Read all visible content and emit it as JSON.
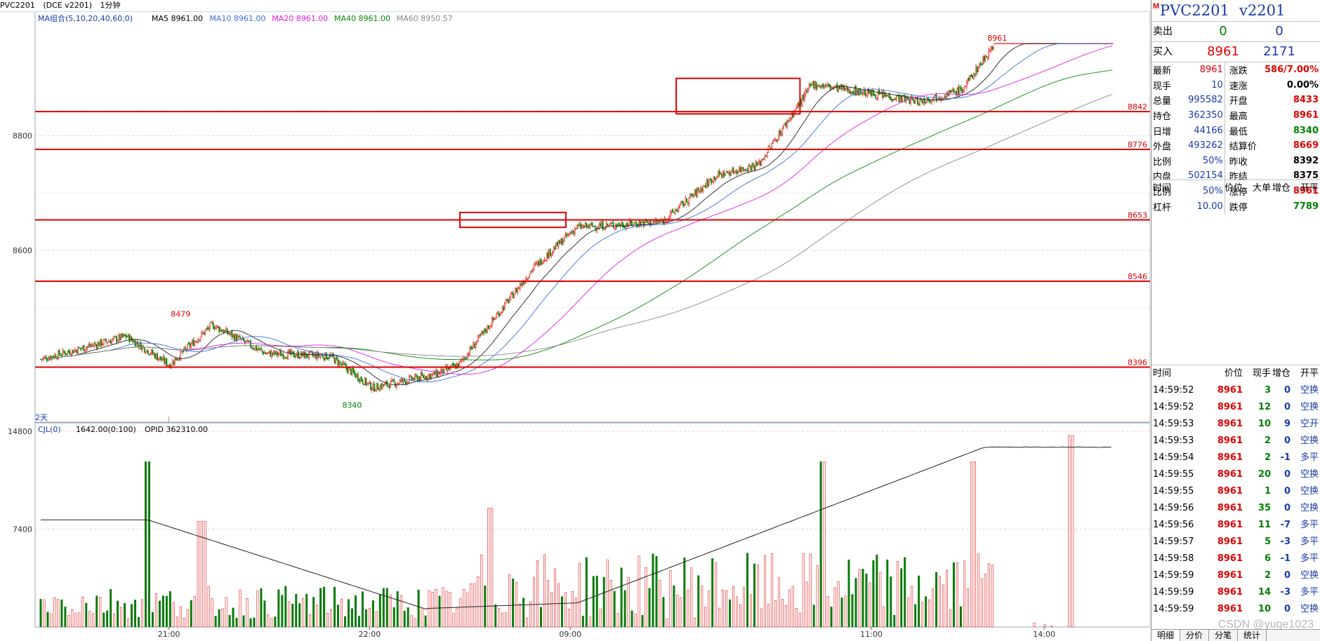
{
  "title": {
    "symbol": "PVC2201",
    "exchange": "(DCE v2201)",
    "period": "1分钟"
  },
  "ma_legend": {
    "group": "MA组合(5,10,20,40,60,0)",
    "ma5": "MA5 8961.00",
    "ma10": "MA10 8961.00",
    "ma20": "MA20 8961.00",
    "ma40": "MA40 8961.00",
    "ma60": "MA60 8950.57"
  },
  "vol_legend": {
    "name": "CJL(0)",
    "values": "1642.00(0:100)",
    "opid": "OPID 362310.00"
  },
  "price_axis": {
    "labels": [
      "8800",
      "8600"
    ]
  },
  "vol_axis": {
    "labels": [
      "14800",
      "7400"
    ]
  },
  "time_axis": {
    "labels": [
      "21:00",
      "22:00",
      "09:00",
      "11:00",
      "14:00"
    ]
  },
  "day_marker": "2天",
  "chart_annotations": {
    "high_label": "8961",
    "low_label": "8340",
    "local_high_label": "8479"
  },
  "hlines": [
    {
      "label": "8842"
    },
    {
      "label": "8776"
    },
    {
      "label": "8653"
    },
    {
      "label": "8546"
    },
    {
      "label": "8396"
    }
  ],
  "chart_data": {
    "type": "candlestick",
    "symbol": "PVC2201",
    "price_range": [
      8300,
      9000
    ],
    "volume_range": [
      0,
      14800
    ],
    "key_levels": [
      8842,
      8776,
      8653,
      8546,
      8396
    ],
    "extremes": {
      "high": 8961,
      "low": 8340,
      "local_high": 8479
    },
    "segments": [
      {
        "from": 0,
        "to": 0.08,
        "start": 8410,
        "end": 8450
      },
      {
        "from": 0.08,
        "to": 0.12,
        "start": 8450,
        "end": 8400
      },
      {
        "from": 0.12,
        "to": 0.16,
        "start": 8400,
        "end": 8470
      },
      {
        "from": 0.16,
        "to": 0.21,
        "start": 8470,
        "end": 8420
      },
      {
        "from": 0.21,
        "to": 0.27,
        "start": 8420,
        "end": 8415
      },
      {
        "from": 0.27,
        "to": 0.31,
        "start": 8415,
        "end": 8360
      },
      {
        "from": 0.31,
        "to": 0.37,
        "start": 8360,
        "end": 8385
      },
      {
        "from": 0.37,
        "to": 0.39,
        "start": 8385,
        "end": 8400
      },
      {
        "from": 0.39,
        "to": 0.46,
        "start": 8400,
        "end": 8570
      },
      {
        "from": 0.46,
        "to": 0.5,
        "start": 8570,
        "end": 8640
      },
      {
        "from": 0.5,
        "to": 0.58,
        "start": 8640,
        "end": 8650
      },
      {
        "from": 0.58,
        "to": 0.63,
        "start": 8650,
        "end": 8730
      },
      {
        "from": 0.63,
        "to": 0.67,
        "start": 8730,
        "end": 8750
      },
      {
        "from": 0.67,
        "to": 0.72,
        "start": 8750,
        "end": 8890
      },
      {
        "from": 0.72,
        "to": 0.82,
        "start": 8890,
        "end": 8860
      },
      {
        "from": 0.82,
        "to": 0.86,
        "start": 8860,
        "end": 8880
      },
      {
        "from": 0.86,
        "to": 0.89,
        "start": 8880,
        "end": 8961
      },
      {
        "from": 0.89,
        "to": 1,
        "start": 8961,
        "end": 8961
      }
    ],
    "volume_spikes": [
      {
        "at": 0.1,
        "value": 12500
      },
      {
        "at": 0.15,
        "value": 8000
      },
      {
        "at": 0.42,
        "value": 9000
      },
      {
        "at": 0.73,
        "value": 12500
      },
      {
        "at": 0.87,
        "value": 12500
      },
      {
        "at": 0.96,
        "value": 14500
      }
    ]
  },
  "panel": {
    "m_badge": "M",
    "name": "PVC2201",
    "code": "v2201",
    "sell": {
      "label": "卖出",
      "price": "0",
      "vol": "0"
    },
    "buy": {
      "label": "买入",
      "price": "8961",
      "vol": "2171"
    },
    "quote_rows": [
      {
        "l1": "最新",
        "v1": "8961",
        "l2": "涨跌",
        "v2": "586/7.00%",
        "c2": "red"
      },
      {
        "l1": "现手",
        "v1": "10",
        "l2": "速涨",
        "v2": "0.00%",
        "c2": "blk"
      },
      {
        "l1": "总量",
        "v1": "995582",
        "l2": "开盘",
        "v2": "8433",
        "c2": "red"
      },
      {
        "l1": "持仓",
        "v1": "362350",
        "l2": "最高",
        "v2": "8961",
        "c2": "red"
      },
      {
        "l1": "日增",
        "v1": "44166",
        "l2": "最低",
        "v2": "8340",
        "c2": "grn"
      },
      {
        "l1": "外盘",
        "v1": "493262",
        "l2": "结算价",
        "v2": "8669",
        "c2": "red"
      },
      {
        "l1": "比例",
        "v1": "50%",
        "l2": "昨收",
        "v2": "8392",
        "c2": "blk"
      },
      {
        "l1": "内盘",
        "v1": "502154",
        "l2": "昨结",
        "v2": "8375",
        "c2": "blk"
      },
      {
        "l1": "比例",
        "v1": "50%",
        "l2": "涨停",
        "v2": "8961",
        "c2": "red"
      },
      {
        "l1": "杠杆",
        "v1": "10.00",
        "l2": "跌停",
        "v2": "7789",
        "c2": "grn"
      }
    ],
    "hdr1": [
      "时间",
      "价位",
      "大单",
      "增仓",
      "开平"
    ],
    "hdr2": [
      "时间",
      "价位",
      "现手",
      "增仓",
      "开平"
    ],
    "trades": [
      {
        "t": "14:59:52",
        "p": "8961",
        "v": "3",
        "d": "0",
        "k": "空换"
      },
      {
        "t": "14:59:52",
        "p": "8961",
        "v": "12",
        "d": "0",
        "k": "空换"
      },
      {
        "t": "14:59:53",
        "p": "8961",
        "v": "10",
        "d": "9",
        "k": "空开"
      },
      {
        "t": "14:59:53",
        "p": "8961",
        "v": "2",
        "d": "0",
        "k": "空换"
      },
      {
        "t": "14:59:54",
        "p": "8961",
        "v": "2",
        "d": "-1",
        "k": "多平"
      },
      {
        "t": "14:59:55",
        "p": "8961",
        "v": "20",
        "d": "0",
        "k": "空换"
      },
      {
        "t": "14:59:55",
        "p": "8961",
        "v": "1",
        "d": "0",
        "k": "空换"
      },
      {
        "t": "14:59:56",
        "p": "8961",
        "v": "35",
        "d": "0",
        "k": "空换"
      },
      {
        "t": "14:59:56",
        "p": "8961",
        "v": "11",
        "d": "-7",
        "k": "多平"
      },
      {
        "t": "14:59:57",
        "p": "8961",
        "v": "5",
        "d": "-3",
        "k": "多平"
      },
      {
        "t": "14:59:58",
        "p": "8961",
        "v": "6",
        "d": "-1",
        "k": "多平"
      },
      {
        "t": "14:59:59",
        "p": "8961",
        "v": "2",
        "d": "0",
        "k": "空换"
      },
      {
        "t": "14:59:59",
        "p": "8961",
        "v": "14",
        "d": "-3",
        "k": "多平"
      },
      {
        "t": "14:59:59",
        "p": "8961",
        "v": "10",
        "d": "0",
        "k": "空换"
      }
    ],
    "tabs": [
      "明细",
      "分价",
      "分笔",
      "统计"
    ],
    "watermark": "CSDN @yuge1023"
  }
}
